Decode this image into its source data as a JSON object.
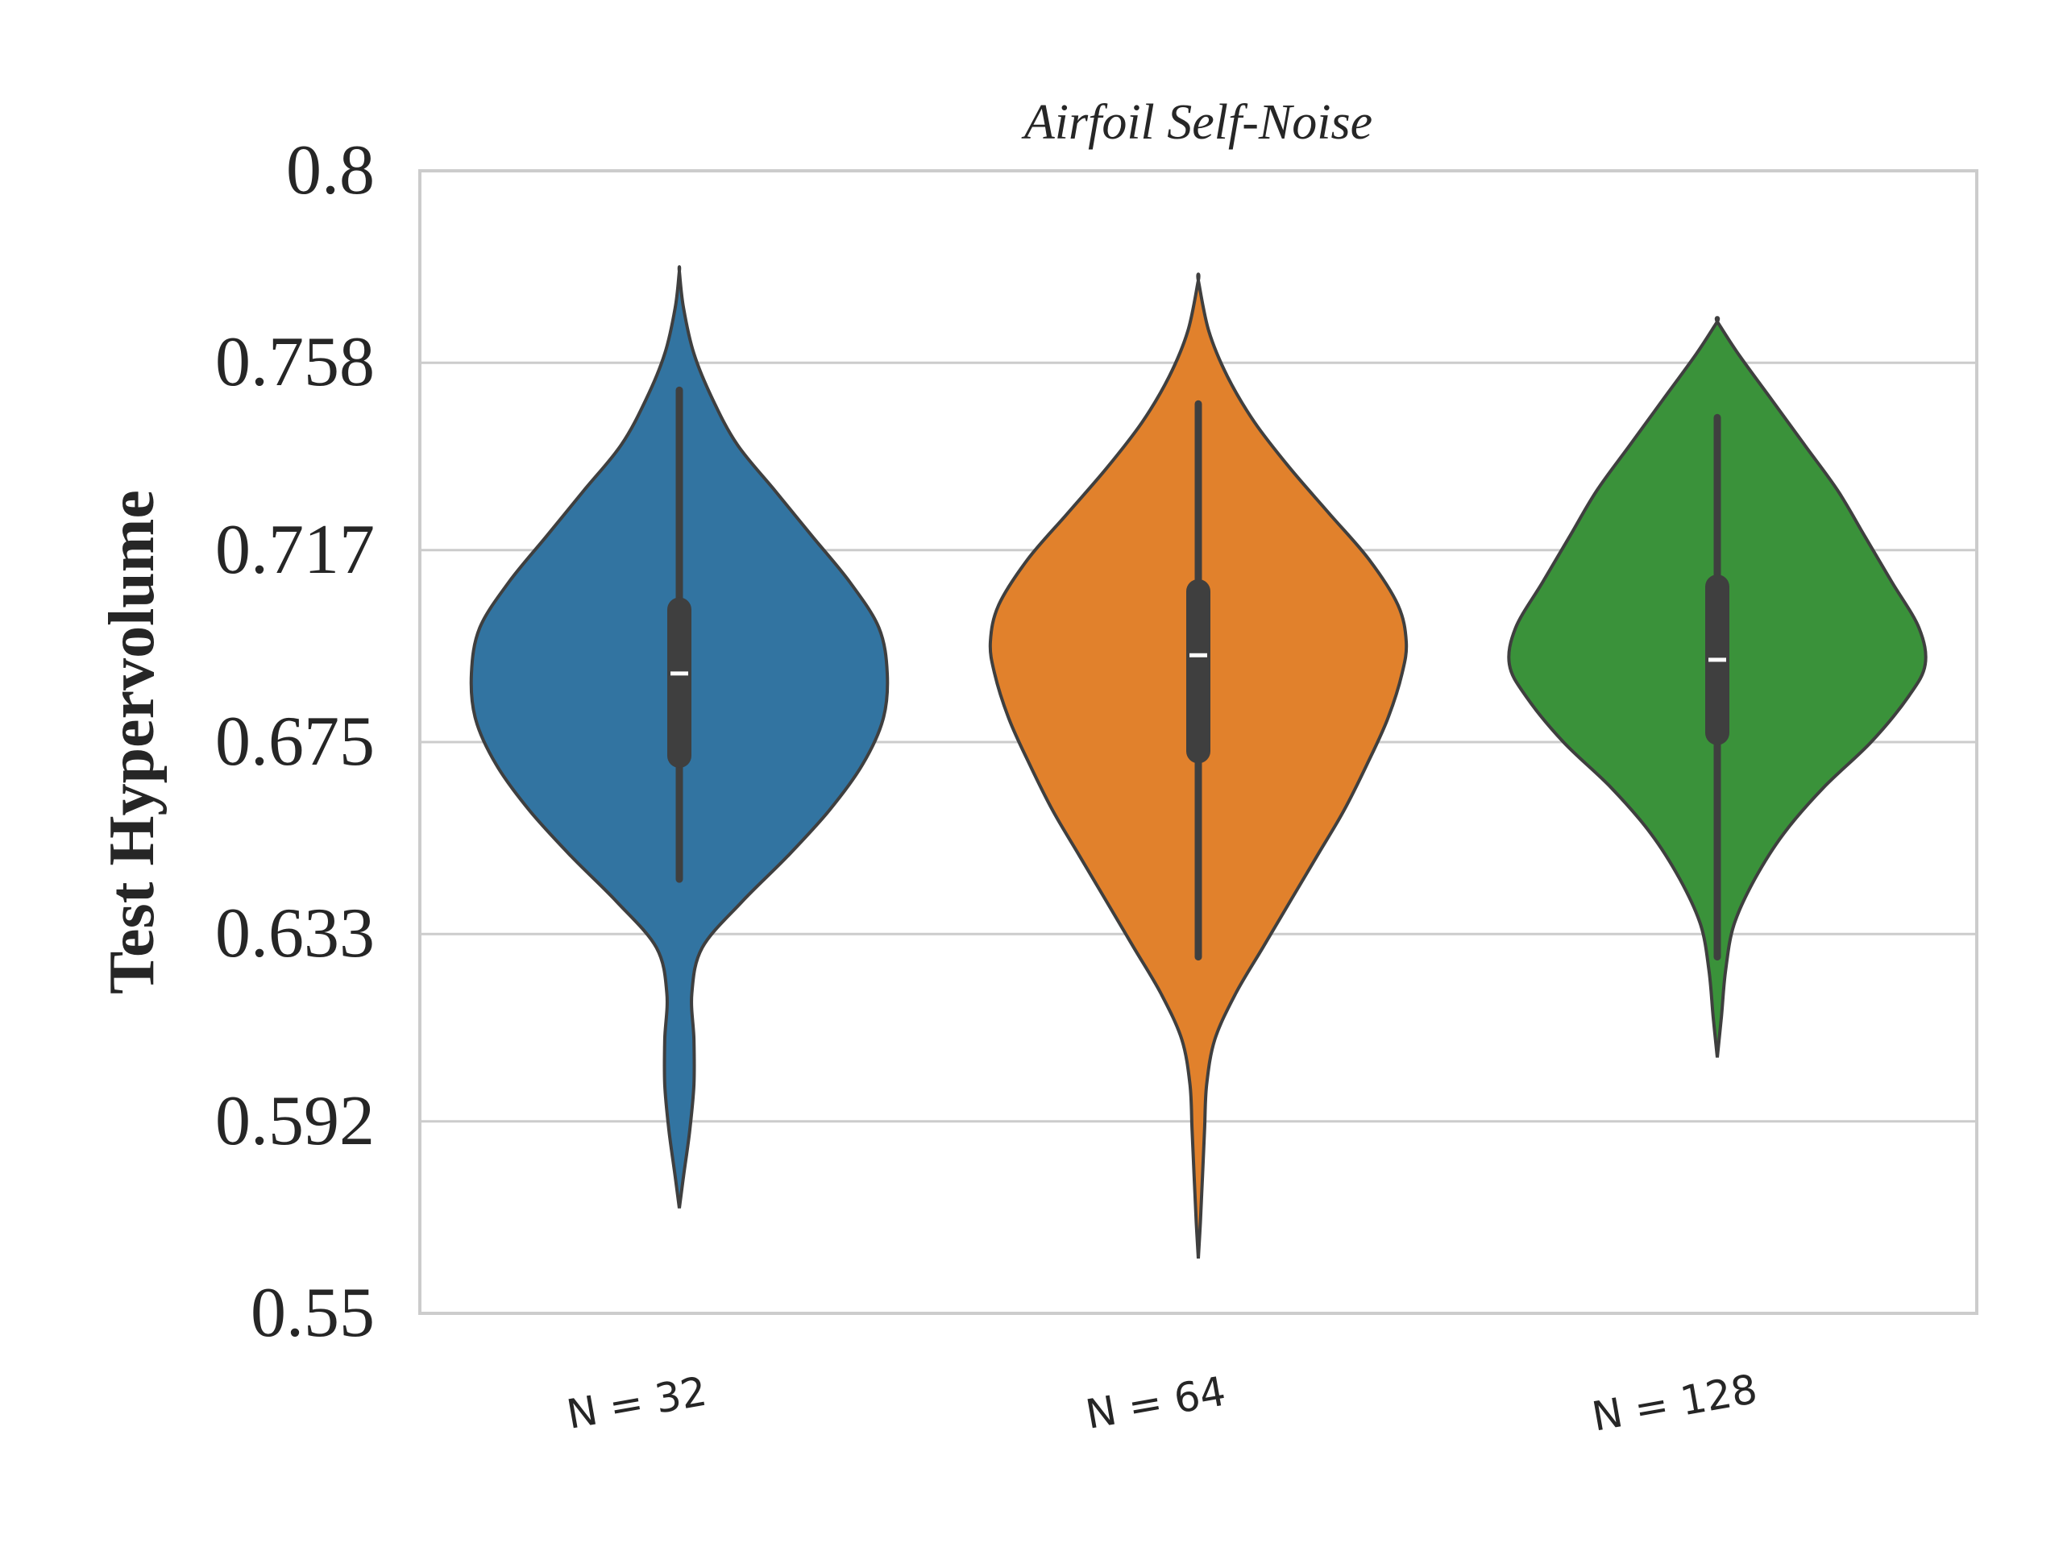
{
  "chart_data": {
    "type": "violin",
    "title": "Airfoil Self-Noise",
    "ylabel": "Test Hypervolume",
    "xlabel": "",
    "ylim": [
      0.55,
      0.8
    ],
    "yticks": [
      "0.8",
      "0.758",
      "0.717",
      "0.675",
      "0.633",
      "0.592",
      "0.55"
    ],
    "ytick_values": [
      0.8,
      0.758,
      0.717,
      0.675,
      0.633,
      0.592,
      0.55
    ],
    "grid": "horizontal",
    "categories": [
      "N = 32",
      "N = 64",
      "N = 128"
    ],
    "colors": [
      "#3274a1",
      "#e1812c",
      "#3a923a"
    ],
    "series": [
      {
        "category": "N = 32",
        "min": 0.573,
        "max": 0.778,
        "whisker_low": 0.645,
        "whisker_high": 0.752,
        "q1": 0.672,
        "median": 0.69,
        "q3": 0.704,
        "profile": [
          [
            0.573,
            0.0
          ],
          [
            0.58,
            0.02
          ],
          [
            0.59,
            0.05
          ],
          [
            0.6,
            0.07
          ],
          [
            0.61,
            0.07
          ],
          [
            0.62,
            0.06
          ],
          [
            0.63,
            0.11
          ],
          [
            0.64,
            0.3
          ],
          [
            0.65,
            0.52
          ],
          [
            0.66,
            0.72
          ],
          [
            0.67,
            0.88
          ],
          [
            0.68,
            0.98
          ],
          [
            0.69,
            1.0
          ],
          [
            0.7,
            0.96
          ],
          [
            0.71,
            0.82
          ],
          [
            0.72,
            0.64
          ],
          [
            0.73,
            0.46
          ],
          [
            0.74,
            0.28
          ],
          [
            0.75,
            0.16
          ],
          [
            0.76,
            0.07
          ],
          [
            0.77,
            0.02
          ],
          [
            0.778,
            0.0
          ]
        ]
      },
      {
        "category": "N = 64",
        "min": 0.562,
        "max": 0.776,
        "whisker_low": 0.628,
        "whisker_high": 0.749,
        "q1": 0.673,
        "median": 0.694,
        "q3": 0.708,
        "profile": [
          [
            0.562,
            0.0
          ],
          [
            0.57,
            0.01
          ],
          [
            0.58,
            0.02
          ],
          [
            0.59,
            0.03
          ],
          [
            0.6,
            0.04
          ],
          [
            0.61,
            0.08
          ],
          [
            0.62,
            0.18
          ],
          [
            0.63,
            0.31
          ],
          [
            0.64,
            0.44
          ],
          [
            0.65,
            0.57
          ],
          [
            0.66,
            0.7
          ],
          [
            0.67,
            0.81
          ],
          [
            0.68,
            0.91
          ],
          [
            0.69,
            0.98
          ],
          [
            0.697,
            1.0
          ],
          [
            0.705,
            0.96
          ],
          [
            0.715,
            0.82
          ],
          [
            0.725,
            0.63
          ],
          [
            0.735,
            0.44
          ],
          [
            0.745,
            0.27
          ],
          [
            0.755,
            0.14
          ],
          [
            0.765,
            0.05
          ],
          [
            0.776,
            0.0
          ]
        ]
      },
      {
        "category": "N = 128",
        "min": 0.606,
        "max": 0.767,
        "whisker_low": 0.628,
        "whisker_high": 0.746,
        "q1": 0.677,
        "median": 0.693,
        "q3": 0.709,
        "profile": [
          [
            0.606,
            0.0
          ],
          [
            0.615,
            0.02
          ],
          [
            0.625,
            0.04
          ],
          [
            0.635,
            0.08
          ],
          [
            0.645,
            0.18
          ],
          [
            0.655,
            0.32
          ],
          [
            0.665,
            0.51
          ],
          [
            0.675,
            0.74
          ],
          [
            0.685,
            0.92
          ],
          [
            0.692,
            1.0
          ],
          [
            0.7,
            0.97
          ],
          [
            0.71,
            0.84
          ],
          [
            0.72,
            0.71
          ],
          [
            0.73,
            0.58
          ],
          [
            0.74,
            0.42
          ],
          [
            0.75,
            0.26
          ],
          [
            0.76,
            0.1
          ],
          [
            0.767,
            0.0
          ]
        ]
      }
    ]
  }
}
